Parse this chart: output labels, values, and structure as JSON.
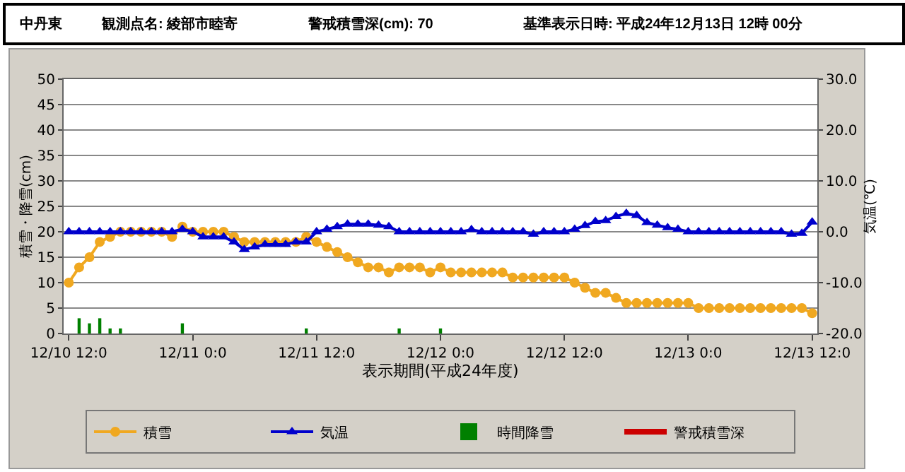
{
  "chart_data": {
    "type": "line",
    "title": "中丹東",
    "annotations": [
      "観測点名: 綾部市睦寄",
      "警戒積雪深(cm): 70",
      "基準表示日時: 平成24年12月13日 12時 00分"
    ],
    "xlabel": "表示期間(平成24年度)",
    "ylabel": "積雪・降雪(cm)",
    "y2label": "気温(℃)",
    "x": [
      "--12-10T12:00",
      "--12-10T13:00",
      "--12-10T14:00",
      "--12-10T15:00",
      "--12-10T16:00",
      "--12-10T17:00",
      "--12-10T18:00",
      "--12-10T19:00",
      "--12-10T20:00",
      "--12-10T21:00",
      "--12-10T22:00",
      "--12-10T23:00",
      "--12-11T00:00",
      "--12-11T01:00",
      "--12-11T02:00",
      "--12-11T03:00",
      "--12-11T04:00",
      "--12-11T05:00",
      "--12-11T06:00",
      "--12-11T07:00",
      "--12-11T08:00",
      "--12-11T09:00",
      "--12-11T10:00",
      "--12-11T11:00",
      "--12-11T12:00",
      "--12-11T13:00",
      "--12-11T14:00",
      "--12-11T15:00",
      "--12-11T16:00",
      "--12-11T17:00",
      "--12-11T18:00",
      "--12-11T19:00",
      "--12-11T20:00",
      "--12-11T21:00",
      "--12-11T22:00",
      "--12-11T23:00",
      "--12-12T00:00",
      "--12-12T01:00",
      "--12-12T02:00",
      "--12-12T03:00",
      "--12-12T04:00",
      "--12-12T05:00",
      "--12-12T06:00",
      "--12-12T07:00",
      "--12-12T08:00",
      "--12-12T09:00",
      "--12-12T10:00",
      "--12-12T11:00",
      "--12-12T12:00",
      "--12-12T13:00",
      "--12-12T14:00",
      "--12-12T15:00",
      "--12-12T16:00",
      "--12-12T17:00",
      "--12-12T18:00",
      "--12-12T19:00",
      "--12-12T20:00",
      "--12-12T21:00",
      "--12-12T22:00",
      "--12-12T23:00",
      "--12-13T00:00",
      "--12-13T01:00",
      "--12-13T02:00",
      "--12-13T03:00",
      "--12-13T04:00",
      "--12-13T05:00",
      "--12-13T06:00",
      "--12-13T07:00",
      "--12-13T08:00",
      "--12-13T09:00",
      "--12-13T10:00",
      "--12-13T11:00",
      "--12-13T12:00"
    ],
    "xlim": [
      "--12-10T11:30",
      "--12-13T12:30"
    ],
    "xticks": [
      {
        "value": "--12-10T12:00",
        "label": "12/10 12:0"
      },
      {
        "value": "--12-11T00:00",
        "label": "12/11 0:0"
      },
      {
        "value": "--12-11T12:00",
        "label": "12/11 12:0"
      },
      {
        "value": "--12-12T00:00",
        "label": "12/12 0:0"
      },
      {
        "value": "--12-12T12:00",
        "label": "12/12 12:0"
      },
      {
        "value": "--12-13T00:00",
        "label": "12/13 0:0"
      },
      {
        "value": "--12-13T12:00",
        "label": "12/13 12:0"
      }
    ],
    "ylim": [
      0,
      50
    ],
    "yticks": [
      0,
      5,
      10,
      15,
      20,
      25,
      30,
      35,
      40,
      45,
      50
    ],
    "y2lim": [
      -20,
      30
    ],
    "y2ticks": [
      {
        "value": -20,
        "label": "-20.0"
      },
      {
        "value": -10,
        "label": "-10.0"
      },
      {
        "value": 0,
        "label": "0.0"
      },
      {
        "value": 10,
        "label": "10.0"
      },
      {
        "value": 20,
        "label": "20.0"
      },
      {
        "value": 30,
        "label": "30.0"
      }
    ],
    "grid": "y",
    "legend": "bottom",
    "series": [
      {
        "name": "積雪",
        "color": "#f0a820",
        "marker": "circle",
        "values": [
          10,
          13,
          15,
          18,
          19,
          20,
          20,
          20,
          20,
          20,
          19,
          21,
          20,
          20,
          20,
          20,
          19,
          18,
          18,
          18,
          18,
          18,
          18,
          19,
          18,
          17,
          16,
          15,
          14,
          13,
          13,
          12,
          13,
          13,
          13,
          12,
          13,
          12,
          12,
          12,
          12,
          12,
          12,
          11,
          11,
          11,
          11,
          11,
          11,
          10,
          9,
          8,
          8,
          7,
          6,
          6,
          6,
          6,
          6,
          6,
          6,
          5,
          5,
          5,
          5,
          5,
          5,
          5,
          5,
          5,
          5,
          5,
          4
        ]
      },
      {
        "name": "気温",
        "axis": "y2",
        "color": "#0000cc",
        "marker": "triangle",
        "values": [
          0,
          0,
          0,
          0,
          0,
          0,
          0,
          0,
          0,
          0,
          0,
          0.5,
          0,
          -1,
          -1,
          -1,
          -2,
          -3.5,
          -3,
          -2.5,
          -2.5,
          -2.5,
          -2,
          -2,
          0,
          0.5,
          1,
          1.5,
          1.5,
          1.5,
          1.3,
          1,
          0,
          0,
          0,
          0,
          0,
          0,
          0,
          0.4,
          0,
          0,
          0,
          0,
          0,
          -0.5,
          0,
          0,
          0,
          0.5,
          1.2,
          2,
          2.2,
          3,
          3.6,
          3.2,
          1.8,
          1.3,
          0.8,
          0.5,
          0,
          0,
          0,
          0,
          0,
          0,
          0,
          0,
          0,
          0,
          -0.5,
          -0.3,
          1.9
        ]
      },
      {
        "name": "時間降雪",
        "type": "bar",
        "color": "#008000",
        "marker": "square",
        "x": [
          "--12-10T13:00",
          "--12-10T14:00",
          "--12-10T15:00",
          "--12-10T16:00",
          "--12-10T17:00",
          "--12-10T23:00",
          "--12-11T11:00",
          "--12-11T20:00",
          "--12-12T00:00"
        ],
        "values": [
          3,
          2,
          3,
          1,
          1,
          2,
          1,
          1,
          1
        ]
      },
      {
        "name": "警戒積雪深",
        "color": "#cc0000",
        "marker": "none",
        "values": [
          null,
          null,
          null,
          null,
          null,
          null,
          null,
          null,
          null,
          null,
          null,
          null,
          null,
          null,
          null,
          null,
          null,
          null,
          null,
          null,
          null,
          null,
          null,
          null,
          null,
          null,
          null,
          null,
          null,
          null,
          null,
          null,
          null,
          null,
          null,
          null,
          null,
          null,
          null,
          null,
          null,
          null,
          null,
          null,
          null,
          null,
          null,
          null,
          null,
          null,
          null,
          null,
          null,
          null,
          null,
          null,
          null,
          null,
          null,
          null,
          null,
          null,
          null,
          null,
          null,
          null,
          null,
          null,
          null,
          null,
          null,
          null,
          null
        ]
      }
    ]
  }
}
